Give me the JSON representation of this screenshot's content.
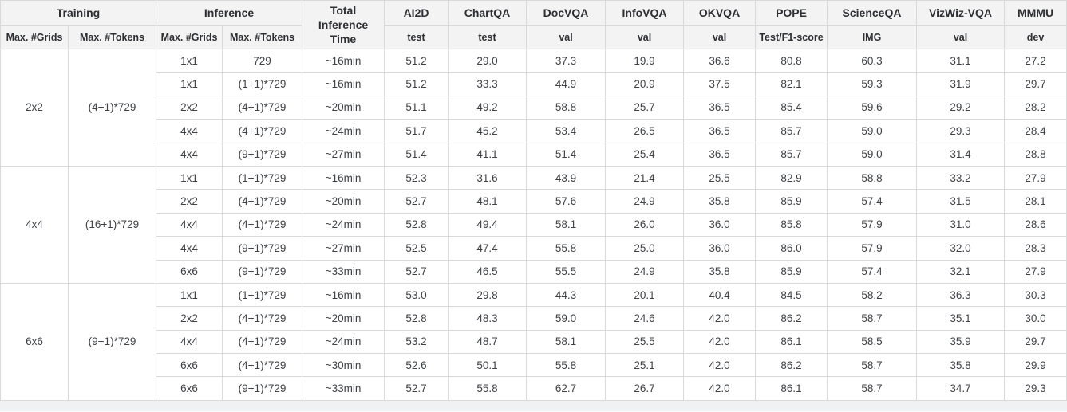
{
  "chart_data": {
    "type": "table",
    "header": {
      "training_label": "Training",
      "inference_label": "Inference",
      "total_time_label": "Total Inference Time",
      "training_subs": [
        "Max. #Grids",
        "Max. #Tokens"
      ],
      "inference_subs": [
        "Max. #Grids",
        "Max. #Tokens"
      ],
      "benchmarks": [
        {
          "name": "AI2D",
          "split": "test"
        },
        {
          "name": "ChartQA",
          "split": "test"
        },
        {
          "name": "DocVQA",
          "split": "val"
        },
        {
          "name": "InfoVQA",
          "split": "val"
        },
        {
          "name": "OKVQA",
          "split": "val"
        },
        {
          "name": "POPE",
          "split": "Test/F1-score"
        },
        {
          "name": "ScienceQA",
          "split": "IMG"
        },
        {
          "name": "VizWiz-VQA",
          "split": "val"
        },
        {
          "name": "MMMU",
          "split": "dev"
        }
      ]
    },
    "groups": [
      {
        "training_grids": "2x2",
        "training_tokens": "(4+1)*729",
        "rows": [
          {
            "inference_grids": "1x1",
            "inference_tokens": "729",
            "time": "~16min",
            "scores": [
              "51.2",
              "29.0",
              "37.3",
              "19.9",
              "36.6",
              "80.8",
              "60.3",
              "31.1",
              "27.2"
            ]
          },
          {
            "inference_grids": "1x1",
            "inference_tokens": "(1+1)*729",
            "time": "~16min",
            "scores": [
              "51.2",
              "33.3",
              "44.9",
              "20.9",
              "37.5",
              "82.1",
              "59.3",
              "31.9",
              "29.7"
            ]
          },
          {
            "inference_grids": "2x2",
            "inference_tokens": "(4+1)*729",
            "time": "~20min",
            "scores": [
              "51.1",
              "49.2",
              "58.8",
              "25.7",
              "36.5",
              "85.4",
              "59.6",
              "29.2",
              "28.2"
            ]
          },
          {
            "inference_grids": "4x4",
            "inference_tokens": "(4+1)*729",
            "time": "~24min",
            "scores": [
              "51.7",
              "45.2",
              "53.4",
              "26.5",
              "36.5",
              "85.7",
              "59.0",
              "29.3",
              "28.4"
            ]
          },
          {
            "inference_grids": "4x4",
            "inference_tokens": "(9+1)*729",
            "time": "~27min",
            "scores": [
              "51.4",
              "41.1",
              "51.4",
              "25.4",
              "36.5",
              "85.7",
              "59.0",
              "31.4",
              "28.8"
            ]
          }
        ]
      },
      {
        "training_grids": "4x4",
        "training_tokens": "(16+1)*729",
        "rows": [
          {
            "inference_grids": "1x1",
            "inference_tokens": "(1+1)*729",
            "time": "~16min",
            "scores": [
              "52.3",
              "31.6",
              "43.9",
              "21.4",
              "25.5",
              "82.9",
              "58.8",
              "33.2",
              "27.9"
            ]
          },
          {
            "inference_grids": "2x2",
            "inference_tokens": "(4+1)*729",
            "time": "~20min",
            "scores": [
              "52.7",
              "48.1",
              "57.6",
              "24.9",
              "35.8",
              "85.9",
              "57.4",
              "31.5",
              "28.1"
            ]
          },
          {
            "inference_grids": "4x4",
            "inference_tokens": "(4+1)*729",
            "time": "~24min",
            "scores": [
              "52.8",
              "49.4",
              "58.1",
              "26.0",
              "36.0",
              "85.8",
              "57.9",
              "31.0",
              "28.6"
            ]
          },
          {
            "inference_grids": "4x4",
            "inference_tokens": "(9+1)*729",
            "time": "~27min",
            "scores": [
              "52.5",
              "47.4",
              "55.8",
              "25.0",
              "36.0",
              "86.0",
              "57.9",
              "32.0",
              "28.3"
            ]
          },
          {
            "inference_grids": "6x6",
            "inference_tokens": "(9+1)*729",
            "time": "~33min",
            "scores": [
              "52.7",
              "46.5",
              "55.5",
              "24.9",
              "35.8",
              "85.9",
              "57.4",
              "32.1",
              "27.9"
            ]
          }
        ]
      },
      {
        "training_grids": "6x6",
        "training_tokens": "(9+1)*729",
        "rows": [
          {
            "inference_grids": "1x1",
            "inference_tokens": "(1+1)*729",
            "time": "~16min",
            "scores": [
              "53.0",
              "29.8",
              "44.3",
              "20.1",
              "40.4",
              "84.5",
              "58.2",
              "36.3",
              "30.3"
            ]
          },
          {
            "inference_grids": "2x2",
            "inference_tokens": "(4+1)*729",
            "time": "~20min",
            "scores": [
              "52.8",
              "48.3",
              "59.0",
              "24.6",
              "42.0",
              "86.2",
              "58.7",
              "35.1",
              "30.0"
            ]
          },
          {
            "inference_grids": "4x4",
            "inference_tokens": "(4+1)*729",
            "time": "~24min",
            "scores": [
              "53.2",
              "48.7",
              "58.1",
              "25.5",
              "42.0",
              "86.1",
              "58.5",
              "35.9",
              "29.7"
            ]
          },
          {
            "inference_grids": "6x6",
            "inference_tokens": "(4+1)*729",
            "time": "~30min",
            "scores": [
              "52.6",
              "50.1",
              "55.8",
              "25.1",
              "42.0",
              "86.2",
              "58.7",
              "35.8",
              "29.9"
            ]
          },
          {
            "inference_grids": "6x6",
            "inference_tokens": "(9+1)*729",
            "time": "~33min",
            "scores": [
              "52.7",
              "55.8",
              "62.7",
              "26.7",
              "42.0",
              "86.1",
              "58.7",
              "34.7",
              "29.3"
            ]
          }
        ]
      }
    ]
  },
  "colors": {
    "header_bg": "#f3f3f3",
    "header_text": "#2d2f33",
    "cell_text": "#3e4145",
    "border": "#d9d9d9",
    "strip_bg": "#f0f1f2"
  }
}
